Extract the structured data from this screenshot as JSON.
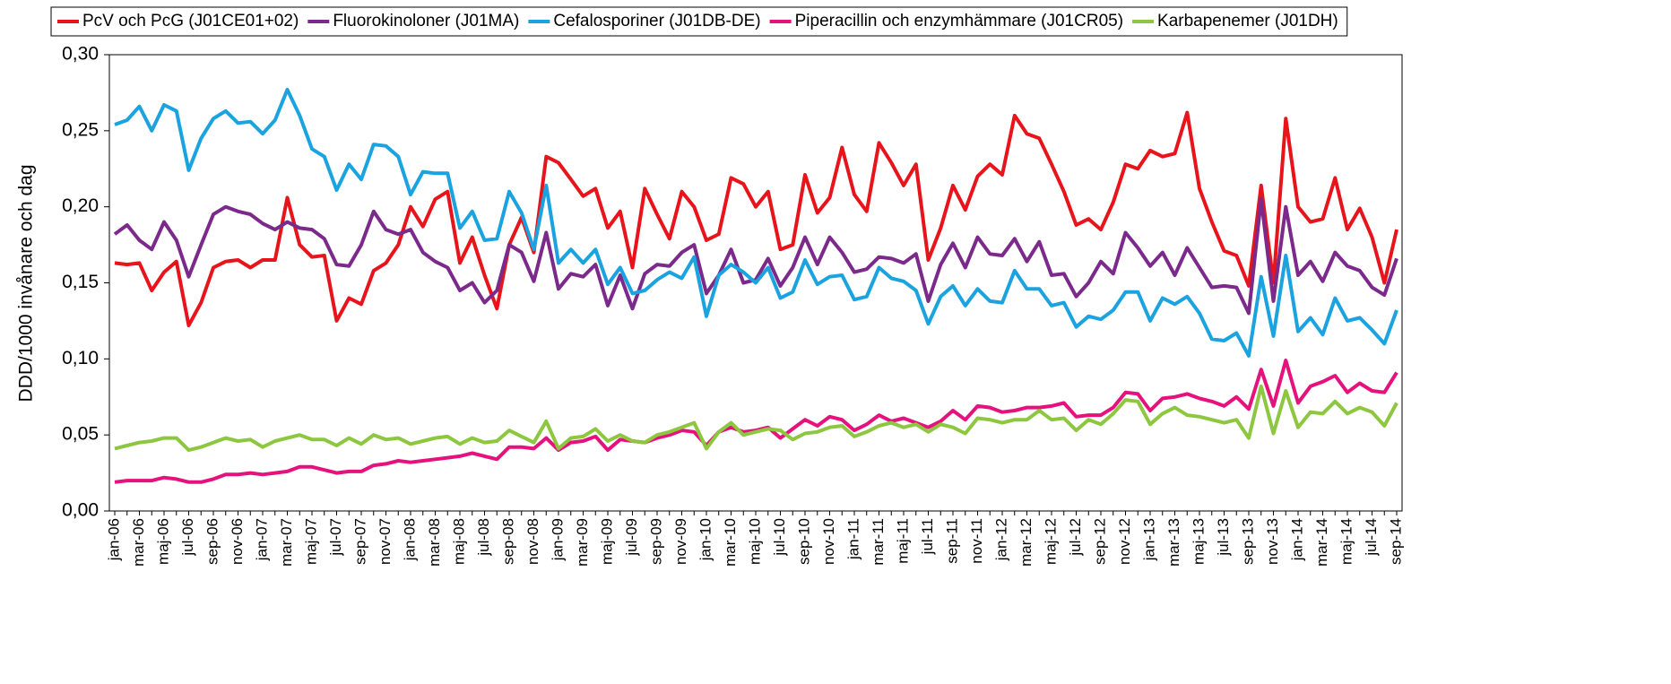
{
  "chart_data": {
    "type": "line",
    "y_label": "DDD/1000 invånare och dag",
    "ylim": [
      0,
      0.3
    ],
    "yticks": [
      {
        "value": 0,
        "label": "0,00"
      },
      {
        "value": 0.05,
        "label": "0,05"
      },
      {
        "value": 0.1,
        "label": "0,10"
      },
      {
        "value": 0.15,
        "label": "0,15"
      },
      {
        "value": 0.2,
        "label": "0,20"
      },
      {
        "value": 0.25,
        "label": "0,25"
      },
      {
        "value": 0.3,
        "label": "0,30"
      }
    ],
    "grid": false,
    "legend": "top",
    "categories": [
      "jan-06",
      null,
      "mar-06",
      null,
      "maj-06",
      null,
      "jul-06",
      null,
      "sep-06",
      null,
      "nov-06",
      null,
      "jan-07",
      null,
      "mar-07",
      null,
      "maj-07",
      null,
      "jul-07",
      null,
      "sep-07",
      null,
      "nov-07",
      null,
      "jan-08",
      null,
      "mar-08",
      null,
      "maj-08",
      null,
      "jul-08",
      null,
      "sep-08",
      null,
      "nov-08",
      null,
      "jan-09",
      null,
      "mar-09",
      null,
      "maj-09",
      null,
      "jul-09",
      null,
      "sep-09",
      null,
      "nov-09",
      null,
      "jan-10",
      null,
      "mar-10",
      null,
      "maj-10",
      null,
      "jul-10",
      null,
      "sep-10",
      null,
      "nov-10",
      null,
      "jan-11",
      null,
      "mar-11",
      null,
      "maj-11",
      null,
      "jul-11",
      null,
      "sep-11",
      null,
      "nov-11",
      null,
      "jan-12",
      null,
      "mar-12",
      null,
      "maj-12",
      null,
      "jul-12",
      null,
      "sep-12",
      null,
      "nov-12",
      null,
      "jan-13",
      null,
      "mar-13",
      null,
      "maj-13",
      null,
      "jul-13",
      null,
      "sep-13",
      null,
      "nov-13",
      null,
      "jan-14",
      null,
      "mar-14",
      null,
      "maj-14",
      null,
      "jul-14",
      null,
      "sep-14"
    ],
    "series": [
      {
        "name": "PcV och PcG (J01CE01+02)",
        "color": "#e8141b",
        "values": [
          0.163,
          0.162,
          0.163,
          0.145,
          0.157,
          0.164,
          0.122,
          0.137,
          0.16,
          0.164,
          0.165,
          0.16,
          0.165,
          0.165,
          0.206,
          0.175,
          0.167,
          0.168,
          0.125,
          0.14,
          0.136,
          0.158,
          0.163,
          0.175,
          0.2,
          0.187,
          0.205,
          0.21,
          0.163,
          0.18,
          0.155,
          0.133,
          0.175,
          0.193,
          0.17,
          0.233,
          0.229,
          0.218,
          0.207,
          0.212,
          0.186,
          0.197,
          0.16,
          0.212,
          0.195,
          0.179,
          0.21,
          0.2,
          0.178,
          0.182,
          0.219,
          0.215,
          0.2,
          0.21,
          0.172,
          0.175,
          0.221,
          0.196,
          0.206,
          0.239,
          0.208,
          0.197,
          0.242,
          0.229,
          0.214,
          0.228,
          0.165,
          0.186,
          0.214,
          0.198,
          0.22,
          0.228,
          0.221,
          0.26,
          0.248,
          0.245,
          0.228,
          0.21,
          0.188,
          0.192,
          0.185,
          0.203,
          0.228,
          0.225,
          0.237,
          0.233,
          0.235,
          0.262,
          0.212,
          0.19,
          0.171,
          0.168,
          0.148,
          0.214,
          0.15,
          0.258,
          0.2,
          0.19,
          0.192,
          0.219,
          0.185,
          0.199,
          0.18,
          0.15,
          0.185
        ]
      },
      {
        "name": "Fluorokinoloner (J01MA)",
        "color": "#7b2a8c",
        "values": [
          0.182,
          0.188,
          0.178,
          0.172,
          0.19,
          0.178,
          0.154,
          0.175,
          0.195,
          0.2,
          0.197,
          0.195,
          0.189,
          0.185,
          0.19,
          0.186,
          0.185,
          0.179,
          0.162,
          0.161,
          0.175,
          0.197,
          0.185,
          0.182,
          0.185,
          0.17,
          0.164,
          0.16,
          0.145,
          0.15,
          0.137,
          0.145,
          0.175,
          0.17,
          0.151,
          0.183,
          0.146,
          0.156,
          0.154,
          0.162,
          0.135,
          0.155,
          0.133,
          0.156,
          0.162,
          0.161,
          0.17,
          0.175,
          0.143,
          0.155,
          0.172,
          0.15,
          0.152,
          0.166,
          0.148,
          0.16,
          0.18,
          0.162,
          0.18,
          0.17,
          0.157,
          0.159,
          0.167,
          0.166,
          0.163,
          0.169,
          0.138,
          0.162,
          0.176,
          0.16,
          0.18,
          0.169,
          0.168,
          0.179,
          0.164,
          0.177,
          0.155,
          0.156,
          0.141,
          0.15,
          0.164,
          0.156,
          0.183,
          0.173,
          0.161,
          0.17,
          0.155,
          0.173,
          0.16,
          0.147,
          0.148,
          0.147,
          0.13,
          0.205,
          0.138,
          0.2,
          0.155,
          0.164,
          0.151,
          0.17,
          0.161,
          0.158,
          0.147,
          0.142,
          0.166
        ]
      },
      {
        "name": "Cefalosporiner (J01DB-DE)",
        "color": "#1ba3e0",
        "values": [
          0.254,
          0.257,
          0.266,
          0.25,
          0.267,
          0.263,
          0.224,
          0.245,
          0.258,
          0.263,
          0.255,
          0.256,
          0.248,
          0.257,
          0.277,
          0.26,
          0.238,
          0.233,
          0.211,
          0.228,
          0.218,
          0.241,
          0.24,
          0.233,
          0.208,
          0.223,
          0.222,
          0.222,
          0.186,
          0.197,
          0.178,
          0.179,
          0.21,
          0.196,
          0.172,
          0.214,
          0.163,
          0.172,
          0.163,
          0.172,
          0.149,
          0.16,
          0.143,
          0.145,
          0.152,
          0.157,
          0.153,
          0.167,
          0.128,
          0.155,
          0.162,
          0.157,
          0.15,
          0.16,
          0.14,
          0.144,
          0.165,
          0.149,
          0.154,
          0.155,
          0.139,
          0.141,
          0.16,
          0.153,
          0.151,
          0.145,
          0.123,
          0.141,
          0.148,
          0.135,
          0.146,
          0.138,
          0.137,
          0.158,
          0.146,
          0.146,
          0.135,
          0.137,
          0.121,
          0.128,
          0.126,
          0.132,
          0.144,
          0.144,
          0.125,
          0.14,
          0.136,
          0.141,
          0.13,
          0.113,
          0.112,
          0.117,
          0.102,
          0.154,
          0.115,
          0.168,
          0.118,
          0.127,
          0.116,
          0.14,
          0.125,
          0.127,
          0.119,
          0.11,
          0.132
        ]
      },
      {
        "name": "Piperacillin och enzymhämmare (J01CR05)",
        "color": "#e5127d",
        "values": [
          0.019,
          0.02,
          0.02,
          0.02,
          0.022,
          0.021,
          0.019,
          0.019,
          0.021,
          0.024,
          0.024,
          0.025,
          0.024,
          0.025,
          0.026,
          0.029,
          0.029,
          0.027,
          0.025,
          0.026,
          0.026,
          0.03,
          0.031,
          0.033,
          0.032,
          0.033,
          0.034,
          0.035,
          0.036,
          0.038,
          0.036,
          0.034,
          0.042,
          0.042,
          0.041,
          0.048,
          0.04,
          0.045,
          0.046,
          0.049,
          0.04,
          0.047,
          0.046,
          0.045,
          0.048,
          0.05,
          0.053,
          0.052,
          0.043,
          0.052,
          0.055,
          0.052,
          0.053,
          0.055,
          0.048,
          0.054,
          0.06,
          0.056,
          0.062,
          0.06,
          0.053,
          0.057,
          0.063,
          0.059,
          0.061,
          0.058,
          0.055,
          0.059,
          0.066,
          0.06,
          0.069,
          0.068,
          0.065,
          0.066,
          0.068,
          0.068,
          0.069,
          0.071,
          0.062,
          0.063,
          0.063,
          0.068,
          0.078,
          0.077,
          0.066,
          0.074,
          0.075,
          0.077,
          0.074,
          0.072,
          0.069,
          0.075,
          0.067,
          0.093,
          0.069,
          0.099,
          0.071,
          0.082,
          0.085,
          0.089,
          0.078,
          0.084,
          0.079,
          0.078,
          0.091
        ]
      },
      {
        "name": "Karbapenemer (J01DH)",
        "color": "#8dc63f",
        "values": [
          0.041,
          0.043,
          0.045,
          0.046,
          0.048,
          0.048,
          0.04,
          0.042,
          0.045,
          0.048,
          0.046,
          0.047,
          0.042,
          0.046,
          0.048,
          0.05,
          0.047,
          0.047,
          0.043,
          0.048,
          0.044,
          0.05,
          0.047,
          0.048,
          0.044,
          0.046,
          0.048,
          0.049,
          0.044,
          0.048,
          0.045,
          0.046,
          0.053,
          0.049,
          0.045,
          0.059,
          0.041,
          0.048,
          0.049,
          0.054,
          0.046,
          0.05,
          0.046,
          0.045,
          0.05,
          0.052,
          0.055,
          0.058,
          0.041,
          0.052,
          0.058,
          0.05,
          0.052,
          0.054,
          0.053,
          0.047,
          0.051,
          0.052,
          0.055,
          0.056,
          0.049,
          0.052,
          0.056,
          0.058,
          0.055,
          0.057,
          0.052,
          0.057,
          0.055,
          0.051,
          0.061,
          0.06,
          0.058,
          0.06,
          0.06,
          0.066,
          0.06,
          0.061,
          0.053,
          0.06,
          0.057,
          0.064,
          0.073,
          0.072,
          0.057,
          0.064,
          0.068,
          0.063,
          0.062,
          0.06,
          0.058,
          0.06,
          0.048,
          0.082,
          0.051,
          0.079,
          0.055,
          0.065,
          0.064,
          0.072,
          0.064,
          0.068,
          0.065,
          0.056,
          0.071
        ]
      }
    ]
  }
}
